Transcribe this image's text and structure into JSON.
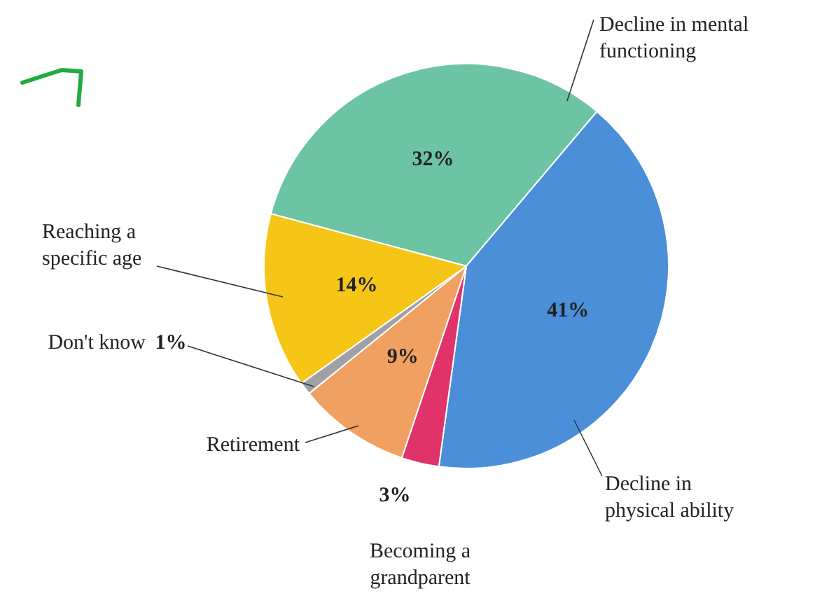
{
  "chart_data": {
    "type": "pie",
    "categories": [
      "Decline in mental functioning",
      "Decline in physical ability",
      "Becoming a grandparent",
      "Retirement",
      "Don't know",
      "Reaching a specific age"
    ],
    "values": [
      32,
      41,
      3,
      9,
      1,
      14
    ],
    "colors": [
      "#6cc4a4",
      "#4a8fd8",
      "#e0336a",
      "#f0a060",
      "#a0a0a8",
      "#f5c518"
    ],
    "value_labels": [
      "32%",
      "41%",
      "3%",
      "9%",
      "1%",
      "14%"
    ]
  }
}
